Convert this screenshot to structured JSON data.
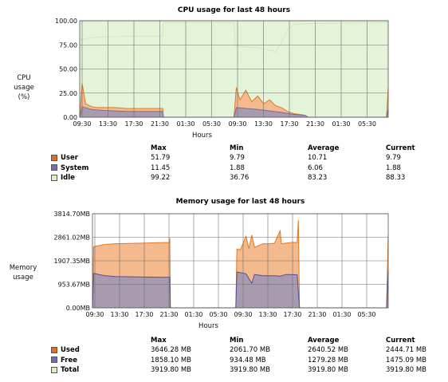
{
  "colors": {
    "user": "#f5b98e",
    "user_line": "#e07a22",
    "user_swatch": "#e0701c",
    "system": "#a89bb0",
    "system_line": "#7a6a9a",
    "system_swatch": "#7a6ab0",
    "idle": "#e4f4d8",
    "idle_line": "#cfe9bd",
    "idle_swatch": "#d8f0c8",
    "plot_bg": "#f3faf0",
    "grid": "#6e6e6e",
    "free_line": "#5a4a9a"
  },
  "cpu": {
    "title": "CPU usage for last 48 hours",
    "ylabel_lines": [
      "CPU",
      "usage",
      "(%)"
    ],
    "xlabel": "Hours",
    "yticks": [
      "100.00",
      "75.00",
      "50.00",
      "25.00",
      "0.00"
    ],
    "xticks": [
      "09:30",
      "13:30",
      "17:30",
      "21:30",
      "01:30",
      "05:30",
      "09:30",
      "13:30",
      "17:30",
      "21:30",
      "01:30",
      "05:30"
    ],
    "stats": {
      "headers": [
        "Max",
        "Min",
        "Average",
        "Current"
      ],
      "rows": [
        {
          "name": "User",
          "max": "51.79",
          "min": "9.79",
          "avg": "10.71",
          "cur": "9.79"
        },
        {
          "name": "System",
          "max": "11.45",
          "min": "1.88",
          "avg": "6.06",
          "cur": "1.88"
        },
        {
          "name": "Idle",
          "max": "99.22",
          "min": "36.76",
          "avg": "83.23",
          "cur": "88.33"
        }
      ]
    }
  },
  "memory": {
    "title": "Memory usage for last 48 hours",
    "ylabel_lines": [
      "Memory",
      "usage"
    ],
    "xlabel": "Hours",
    "yticks": [
      "3814.70MB",
      "2861.02MB",
      "1907.35MB",
      "953.67MB",
      "0.00MB"
    ],
    "xticks": [
      "09:30",
      "13:30",
      "17:30",
      "21:30",
      "01:30",
      "05:30",
      "09:30",
      "13:30",
      "17:30",
      "21:30",
      "01:30",
      "05:30"
    ],
    "stats": {
      "headers": [
        "Max",
        "Min",
        "Average",
        "Current"
      ],
      "rows": [
        {
          "name": "Used",
          "max": "3646.28 MB",
          "min": "2061.70 MB",
          "avg": "2640.52 MB",
          "cur": "2444.71 MB"
        },
        {
          "name": "Free",
          "max": "1858.10 MB",
          "min": "934.48 MB",
          "avg": "1279.28 MB",
          "cur": "1475.09 MB"
        },
        {
          "name": "Total",
          "max": "3919.80 MB",
          "min": "3919.80 MB",
          "avg": "3919.80 MB",
          "cur": "3919.80 MB"
        }
      ]
    }
  },
  "chart_data": [
    {
      "type": "area",
      "title": "CPU usage for last 48 hours",
      "xlabel": "Hours",
      "ylabel": "CPU usage (%)",
      "ylim": [
        0,
        100
      ],
      "x_unit": "hours",
      "x_tick_labels": [
        "09:30",
        "13:30",
        "17:30",
        "21:30",
        "01:30",
        "05:30",
        "09:30",
        "13:30",
        "17:30",
        "21:30",
        "01:30",
        "05:30"
      ],
      "x_range": [
        0,
        52
      ],
      "grid": true,
      "legend": "table-below",
      "series": [
        {
          "name": "User",
          "points": [
            [
              0,
              0
            ],
            [
              0.4,
              35
            ],
            [
              1,
              14
            ],
            [
              2,
              11
            ],
            [
              3,
              10
            ],
            [
              4,
              10
            ],
            [
              6,
              10
            ],
            [
              8,
              9
            ],
            [
              10,
              9
            ],
            [
              12,
              9
            ],
            [
              14,
              9
            ],
            [
              14.1,
              0
            ],
            [
              26,
              0
            ],
            [
              26.4,
              31
            ],
            [
              27,
              18
            ],
            [
              28,
              28
            ],
            [
              29,
              16
            ],
            [
              30,
              22
            ],
            [
              31,
              14
            ],
            [
              32,
              18
            ],
            [
              33,
              12
            ],
            [
              34,
              10
            ],
            [
              35,
              6
            ],
            [
              36,
              4
            ],
            [
              37,
              3
            ],
            [
              38,
              2
            ],
            [
              38.5,
              0
            ],
            [
              51.7,
              0
            ],
            [
              52,
              30
            ]
          ]
        },
        {
          "name": "System",
          "points": [
            [
              0,
              0
            ],
            [
              0.4,
              11
            ],
            [
              2,
              8
            ],
            [
              4,
              7
            ],
            [
              8,
              6
            ],
            [
              12,
              6
            ],
            [
              14,
              6
            ],
            [
              14.1,
              0
            ],
            [
              26,
              0
            ],
            [
              26.4,
              10
            ],
            [
              30,
              8
            ],
            [
              34,
              5
            ],
            [
              36,
              3
            ],
            [
              38,
              2
            ],
            [
              38.5,
              0
            ],
            [
              51.7,
              0
            ],
            [
              52,
              8
            ]
          ]
        },
        {
          "name": "Idle",
          "points": [
            [
              0,
              80
            ],
            [
              1.5,
              82
            ],
            [
              3,
              83
            ],
            [
              8,
              84
            ],
            [
              14,
              84
            ],
            [
              14.1,
              98
            ],
            [
              26,
              98
            ],
            [
              26.2,
              74
            ],
            [
              30,
              72
            ],
            [
              33,
              68
            ],
            [
              34,
              77
            ],
            [
              35,
              90
            ],
            [
              36,
              96
            ],
            [
              38,
              97
            ],
            [
              52,
              98
            ]
          ]
        }
      ]
    },
    {
      "type": "area",
      "title": "Memory usage for last 48 hours",
      "xlabel": "Hours",
      "ylabel": "Memory usage",
      "ylim": [
        0,
        3814.7
      ],
      "y_unit": "MB",
      "x_unit": "hours",
      "x_tick_labels": [
        "09:30",
        "13:30",
        "17:30",
        "21:30",
        "01:30",
        "05:30",
        "09:30",
        "13:30",
        "17:30",
        "21:30",
        "01:30",
        "05:30"
      ],
      "x_range": [
        0,
        52
      ],
      "grid": true,
      "legend": "table-below",
      "series": [
        {
          "name": "Used",
          "points": [
            [
              0,
              0
            ],
            [
              0.2,
              2480
            ],
            [
              2,
              2560
            ],
            [
              4,
              2600
            ],
            [
              8,
              2620
            ],
            [
              12,
              2640
            ],
            [
              13.5,
              2650
            ],
            [
              13.6,
              2830
            ],
            [
              13.7,
              0
            ],
            [
              25.2,
              0
            ],
            [
              25.4,
              2380
            ],
            [
              26,
              2350
            ],
            [
              27,
              2900
            ],
            [
              27.5,
              2400
            ],
            [
              28,
              2950
            ],
            [
              28.5,
              2450
            ],
            [
              30,
              2600
            ],
            [
              31,
              2600
            ],
            [
              32,
              2620
            ],
            [
              33,
              3120
            ],
            [
              33.2,
              2600
            ],
            [
              35,
              2650
            ],
            [
              36,
              2650
            ],
            [
              36.2,
              3550
            ],
            [
              36.4,
              0
            ],
            [
              51.7,
              0
            ],
            [
              52,
              2960
            ]
          ]
        },
        {
          "name": "Free",
          "points": [
            [
              0,
              0
            ],
            [
              0.2,
              1400
            ],
            [
              2,
              1310
            ],
            [
              4,
              1270
            ],
            [
              8,
              1250
            ],
            [
              12,
              1240
            ],
            [
              13.6,
              1240
            ],
            [
              13.7,
              0
            ],
            [
              25.2,
              0
            ],
            [
              25.4,
              1450
            ],
            [
              27,
              1380
            ],
            [
              28,
              1000
            ],
            [
              28.5,
              1350
            ],
            [
              30,
              1300
            ],
            [
              32,
              1300
            ],
            [
              33,
              1280
            ],
            [
              34,
              1350
            ],
            [
              36,
              1340
            ],
            [
              36.4,
              0
            ],
            [
              51.7,
              0
            ],
            [
              52,
              1480
            ]
          ]
        }
      ]
    }
  ]
}
